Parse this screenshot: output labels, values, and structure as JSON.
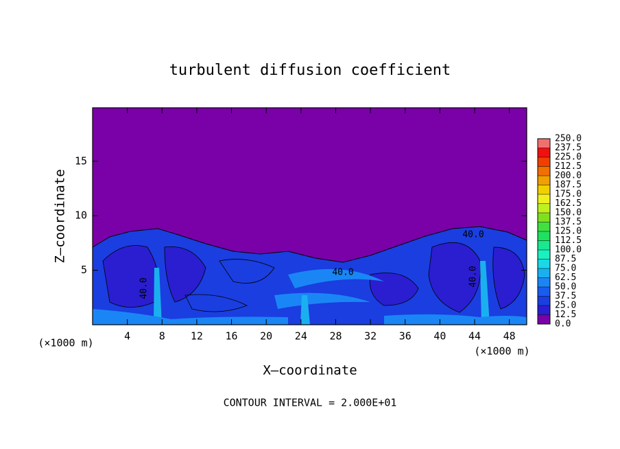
{
  "chart_data": {
    "type": "contour",
    "title": "turbulent diffusion coefficient",
    "x_label": "X–coordinate",
    "y_label": "Z–coordinate",
    "x_unit_label": "(×1000 m)",
    "y_unit_label": "(×1000 m)",
    "note": "CONTOUR INTERVAL = 2.000E+01",
    "xlim": [
      0,
      50
    ],
    "ylim": [
      0,
      19.9
    ],
    "xticks": [
      4,
      8,
      12,
      16,
      20,
      24,
      28,
      32,
      36,
      40,
      44,
      48
    ],
    "yticks": [
      5,
      10,
      15
    ],
    "contour_labels": [
      "40.0",
      "40.0",
      "40.0",
      "40.0"
    ],
    "colorbar": {
      "ticks": [
        {
          "value": 0,
          "label": "0.0"
        },
        12.5,
        {
          "value": 25,
          "label": "25.0"
        },
        37.5,
        {
          "value": 50,
          "label": "50.0"
        },
        62.5,
        {
          "value": 75,
          "label": "75.0"
        },
        87.5,
        {
          "value": 100,
          "label": "100.0"
        },
        112.5,
        {
          "value": 125,
          "label": "125.0"
        },
        137.5,
        {
          "value": 150,
          "label": "150.0"
        },
        162.5,
        {
          "value": 175,
          "label": "175.0"
        },
        187.5,
        {
          "value": 200,
          "label": "200.0"
        },
        212.5,
        {
          "value": 225,
          "label": "225.0"
        },
        237.5,
        {
          "value": 250,
          "label": "250.0"
        }
      ],
      "colors": [
        "#7a00a8",
        "#2a1ed0",
        "#1a3ee0",
        "#1a5cf0",
        "#1a86f5",
        "#1ab0f0",
        "#1ad8e8",
        "#1af0c0",
        "#1ae890",
        "#20e060",
        "#40e040",
        "#80e020",
        "#c0f020",
        "#f0f020",
        "#f0d000",
        "#f0a000",
        "#f07000",
        "#f04000",
        "#f01010",
        "#f07070"
      ]
    }
  }
}
